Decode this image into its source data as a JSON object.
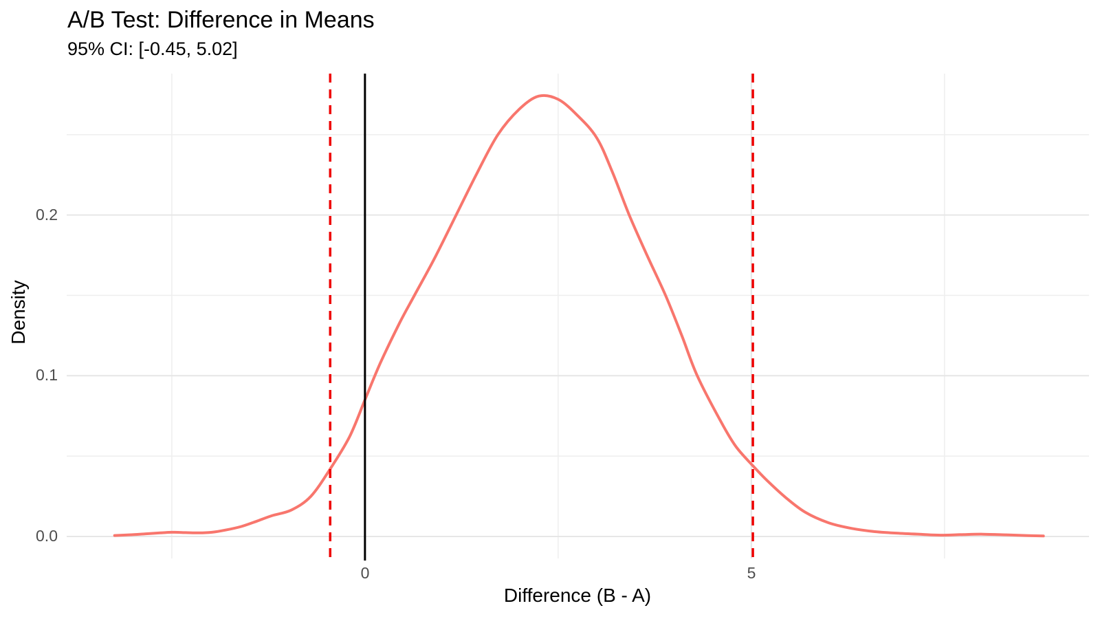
{
  "chart_data": {
    "type": "line",
    "subtype": "density",
    "title": "A/B Test: Difference in Means",
    "subtitle": "95% CI: [-0.45, 5.02]",
    "xlabel": "Difference (B - A)",
    "ylabel": "Density",
    "xlim": [
      -3.86,
      9.37
    ],
    "ylim": [
      -0.0137,
      0.288
    ],
    "grid": true,
    "legend": "none",
    "background": "#ffffff",
    "x_ticks": [
      {
        "value": 0,
        "label": "0"
      },
      {
        "value": 5,
        "label": "5"
      }
    ],
    "x_minor_ticks": [
      -2.5,
      2.5,
      7.5
    ],
    "y_ticks": [
      {
        "value": 0.0,
        "label": "0.0"
      },
      {
        "value": 0.1,
        "label": "0.1"
      },
      {
        "value": 0.2,
        "label": "0.2"
      }
    ],
    "y_minor_ticks": [
      0.05,
      0.15,
      0.25
    ],
    "ci_lower": -0.45,
    "ci_upper": 5.02,
    "vlines": [
      {
        "name": "zero-line",
        "x": 0,
        "color": "#000000",
        "style": "solid",
        "width": 3
      },
      {
        "name": "ci-lower-line",
        "x": -0.45,
        "color": "#ee0000",
        "style": "dashed",
        "width": 3.5
      },
      {
        "name": "ci-upper-line",
        "x": 5.02,
        "color": "#ee0000",
        "style": "dashed",
        "width": 3.5
      }
    ],
    "series": [
      {
        "name": "difference-density",
        "color": "#F8766D",
        "stroke_width": 4,
        "points": [
          [
            -3.24,
            0.0006
          ],
          [
            -3.05,
            0.001
          ],
          [
            -2.85,
            0.0016
          ],
          [
            -2.65,
            0.0022
          ],
          [
            -2.5,
            0.0026
          ],
          [
            -2.32,
            0.0024
          ],
          [
            -2.15,
            0.0022
          ],
          [
            -1.98,
            0.0026
          ],
          [
            -1.8,
            0.004
          ],
          [
            -1.6,
            0.0062
          ],
          [
            -1.4,
            0.0095
          ],
          [
            -1.2,
            0.013
          ],
          [
            -0.95,
            0.0165
          ],
          [
            -0.7,
            0.025
          ],
          [
            -0.45,
            0.042
          ],
          [
            -0.2,
            0.062
          ],
          [
            0.0,
            0.085
          ],
          [
            0.2,
            0.108
          ],
          [
            0.45,
            0.133
          ],
          [
            0.64,
            0.15
          ],
          [
            0.9,
            0.173
          ],
          [
            1.18,
            0.2
          ],
          [
            1.45,
            0.226
          ],
          [
            1.72,
            0.25
          ],
          [
            2.0,
            0.266
          ],
          [
            2.25,
            0.274
          ],
          [
            2.5,
            0.272
          ],
          [
            2.75,
            0.262
          ],
          [
            3.0,
            0.248
          ],
          [
            3.2,
            0.227
          ],
          [
            3.42,
            0.2
          ],
          [
            3.65,
            0.175
          ],
          [
            3.89,
            0.15
          ],
          [
            4.1,
            0.125
          ],
          [
            4.3,
            0.1
          ],
          [
            4.6,
            0.072
          ],
          [
            4.8,
            0.056
          ],
          [
            5.02,
            0.044
          ],
          [
            5.2,
            0.035
          ],
          [
            5.45,
            0.024
          ],
          [
            5.7,
            0.015
          ],
          [
            6.0,
            0.0085
          ],
          [
            6.3,
            0.005
          ],
          [
            6.6,
            0.003
          ],
          [
            6.9,
            0.002
          ],
          [
            7.2,
            0.0013
          ],
          [
            7.45,
            0.0008
          ],
          [
            7.75,
            0.0012
          ],
          [
            8.0,
            0.0014
          ],
          [
            8.3,
            0.001
          ],
          [
            8.55,
            0.0006
          ],
          [
            8.78,
            0.0003
          ]
        ]
      }
    ],
    "colors": {
      "curve": "#F8766D",
      "ci_line": "#ee0000",
      "zero_line": "#000000",
      "grid_major": "#e6e6e6",
      "grid_minor": "#efefef",
      "tick_label": "#4d4d4d",
      "text": "#000000"
    }
  }
}
